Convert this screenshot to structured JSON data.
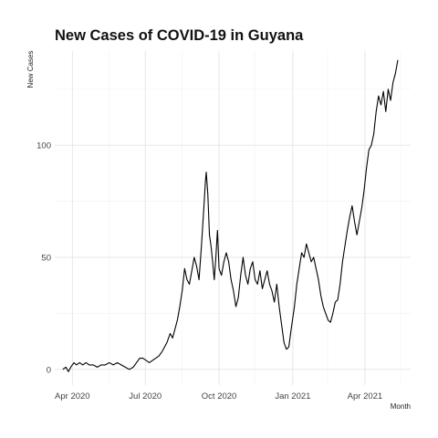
{
  "chart_data": {
    "type": "line",
    "title": "New Cases of COVID-19 in Guyana",
    "xlabel": "Month",
    "ylabel": "New Cases",
    "ylim": [
      -7,
      142
    ],
    "xlim": [
      "2020-03-10",
      "2021-05-28"
    ],
    "grid": true,
    "x_ticks": [
      {
        "date": "2020-04-01",
        "label": "Apr 2020"
      },
      {
        "date": "2020-07-01",
        "label": "Jul 2020"
      },
      {
        "date": "2020-10-01",
        "label": "Oct 2020"
      },
      {
        "date": "2021-01-01",
        "label": "Jan 2021"
      },
      {
        "date": "2021-04-01",
        "label": "Apr 2021"
      }
    ],
    "y_ticks": [
      0,
      50,
      100
    ],
    "series": [
      {
        "color": "#000000",
        "points": [
          [
            "2020-03-20",
            0
          ],
          [
            "2020-03-24",
            1
          ],
          [
            "2020-03-27",
            -1
          ],
          [
            "2020-03-30",
            1
          ],
          [
            "2020-04-03",
            3
          ],
          [
            "2020-04-06",
            2
          ],
          [
            "2020-04-10",
            3
          ],
          [
            "2020-04-14",
            2
          ],
          [
            "2020-04-18",
            3
          ],
          [
            "2020-04-22",
            2
          ],
          [
            "2020-04-27",
            2
          ],
          [
            "2020-05-02",
            1
          ],
          [
            "2020-05-07",
            2
          ],
          [
            "2020-05-12",
            2
          ],
          [
            "2020-05-17",
            3
          ],
          [
            "2020-05-22",
            2
          ],
          [
            "2020-05-27",
            3
          ],
          [
            "2020-06-01",
            2
          ],
          [
            "2020-06-06",
            1
          ],
          [
            "2020-06-11",
            0
          ],
          [
            "2020-06-16",
            1
          ],
          [
            "2020-06-20",
            3
          ],
          [
            "2020-06-24",
            5
          ],
          [
            "2020-06-28",
            5
          ],
          [
            "2020-07-02",
            4
          ],
          [
            "2020-07-06",
            3
          ],
          [
            "2020-07-10",
            4
          ],
          [
            "2020-07-14",
            5
          ],
          [
            "2020-07-18",
            6
          ],
          [
            "2020-07-22",
            8
          ],
          [
            "2020-07-25",
            10
          ],
          [
            "2020-07-28",
            12
          ],
          [
            "2020-08-01",
            16
          ],
          [
            "2020-08-04",
            14
          ],
          [
            "2020-08-07",
            18
          ],
          [
            "2020-08-10",
            22
          ],
          [
            "2020-08-13",
            28
          ],
          [
            "2020-08-16",
            35
          ],
          [
            "2020-08-19",
            45
          ],
          [
            "2020-08-22",
            40
          ],
          [
            "2020-08-25",
            38
          ],
          [
            "2020-08-28",
            44
          ],
          [
            "2020-08-31",
            50
          ],
          [
            "2020-09-03",
            46
          ],
          [
            "2020-09-06",
            40
          ],
          [
            "2020-09-09",
            55
          ],
          [
            "2020-09-12",
            72
          ],
          [
            "2020-09-14",
            84
          ],
          [
            "2020-09-15",
            88
          ],
          [
            "2020-09-17",
            78
          ],
          [
            "2020-09-19",
            60
          ],
          [
            "2020-09-21",
            55
          ],
          [
            "2020-09-23",
            48
          ],
          [
            "2020-09-25",
            40
          ],
          [
            "2020-09-27",
            50
          ],
          [
            "2020-09-29",
            62
          ],
          [
            "2020-10-01",
            45
          ],
          [
            "2020-10-04",
            42
          ],
          [
            "2020-10-07",
            48
          ],
          [
            "2020-10-10",
            52
          ],
          [
            "2020-10-13",
            48
          ],
          [
            "2020-10-16",
            40
          ],
          [
            "2020-10-19",
            35
          ],
          [
            "2020-10-22",
            28
          ],
          [
            "2020-10-25",
            32
          ],
          [
            "2020-10-28",
            42
          ],
          [
            "2020-10-31",
            50
          ],
          [
            "2020-11-03",
            42
          ],
          [
            "2020-11-06",
            38
          ],
          [
            "2020-11-09",
            45
          ],
          [
            "2020-11-12",
            48
          ],
          [
            "2020-11-15",
            40
          ],
          [
            "2020-11-18",
            38
          ],
          [
            "2020-11-21",
            44
          ],
          [
            "2020-11-24",
            36
          ],
          [
            "2020-11-27",
            40
          ],
          [
            "2020-11-30",
            44
          ],
          [
            "2020-12-03",
            38
          ],
          [
            "2020-12-06",
            35
          ],
          [
            "2020-12-09",
            30
          ],
          [
            "2020-12-12",
            38
          ],
          [
            "2020-12-15",
            28
          ],
          [
            "2020-12-18",
            20
          ],
          [
            "2020-12-21",
            12
          ],
          [
            "2020-12-24",
            9
          ],
          [
            "2020-12-27",
            10
          ],
          [
            "2020-12-30",
            18
          ],
          [
            "2021-01-03",
            28
          ],
          [
            "2021-01-06",
            38
          ],
          [
            "2021-01-09",
            45
          ],
          [
            "2021-01-12",
            52
          ],
          [
            "2021-01-15",
            50
          ],
          [
            "2021-01-18",
            56
          ],
          [
            "2021-01-21",
            52
          ],
          [
            "2021-01-24",
            48
          ],
          [
            "2021-01-27",
            50
          ],
          [
            "2021-01-30",
            45
          ],
          [
            "2021-02-02",
            40
          ],
          [
            "2021-02-05",
            33
          ],
          [
            "2021-02-08",
            28
          ],
          [
            "2021-02-11",
            25
          ],
          [
            "2021-02-14",
            22
          ],
          [
            "2021-02-17",
            21
          ],
          [
            "2021-02-20",
            25
          ],
          [
            "2021-02-23",
            30
          ],
          [
            "2021-02-26",
            31
          ],
          [
            "2021-03-01",
            38
          ],
          [
            "2021-03-04",
            48
          ],
          [
            "2021-03-07",
            55
          ],
          [
            "2021-03-10",
            62
          ],
          [
            "2021-03-13",
            68
          ],
          [
            "2021-03-16",
            73
          ],
          [
            "2021-03-19",
            66
          ],
          [
            "2021-03-22",
            60
          ],
          [
            "2021-03-25",
            66
          ],
          [
            "2021-03-28",
            72
          ],
          [
            "2021-03-31",
            80
          ],
          [
            "2021-04-03",
            90
          ],
          [
            "2021-04-06",
            98
          ],
          [
            "2021-04-09",
            100
          ],
          [
            "2021-04-12",
            105
          ],
          [
            "2021-04-15",
            115
          ],
          [
            "2021-04-18",
            122
          ],
          [
            "2021-04-21",
            118
          ],
          [
            "2021-04-24",
            124
          ],
          [
            "2021-04-27",
            115
          ],
          [
            "2021-04-30",
            125
          ],
          [
            "2021-05-03",
            120
          ],
          [
            "2021-05-06",
            128
          ],
          [
            "2021-05-09",
            132
          ],
          [
            "2021-05-12",
            138
          ]
        ]
      }
    ]
  }
}
